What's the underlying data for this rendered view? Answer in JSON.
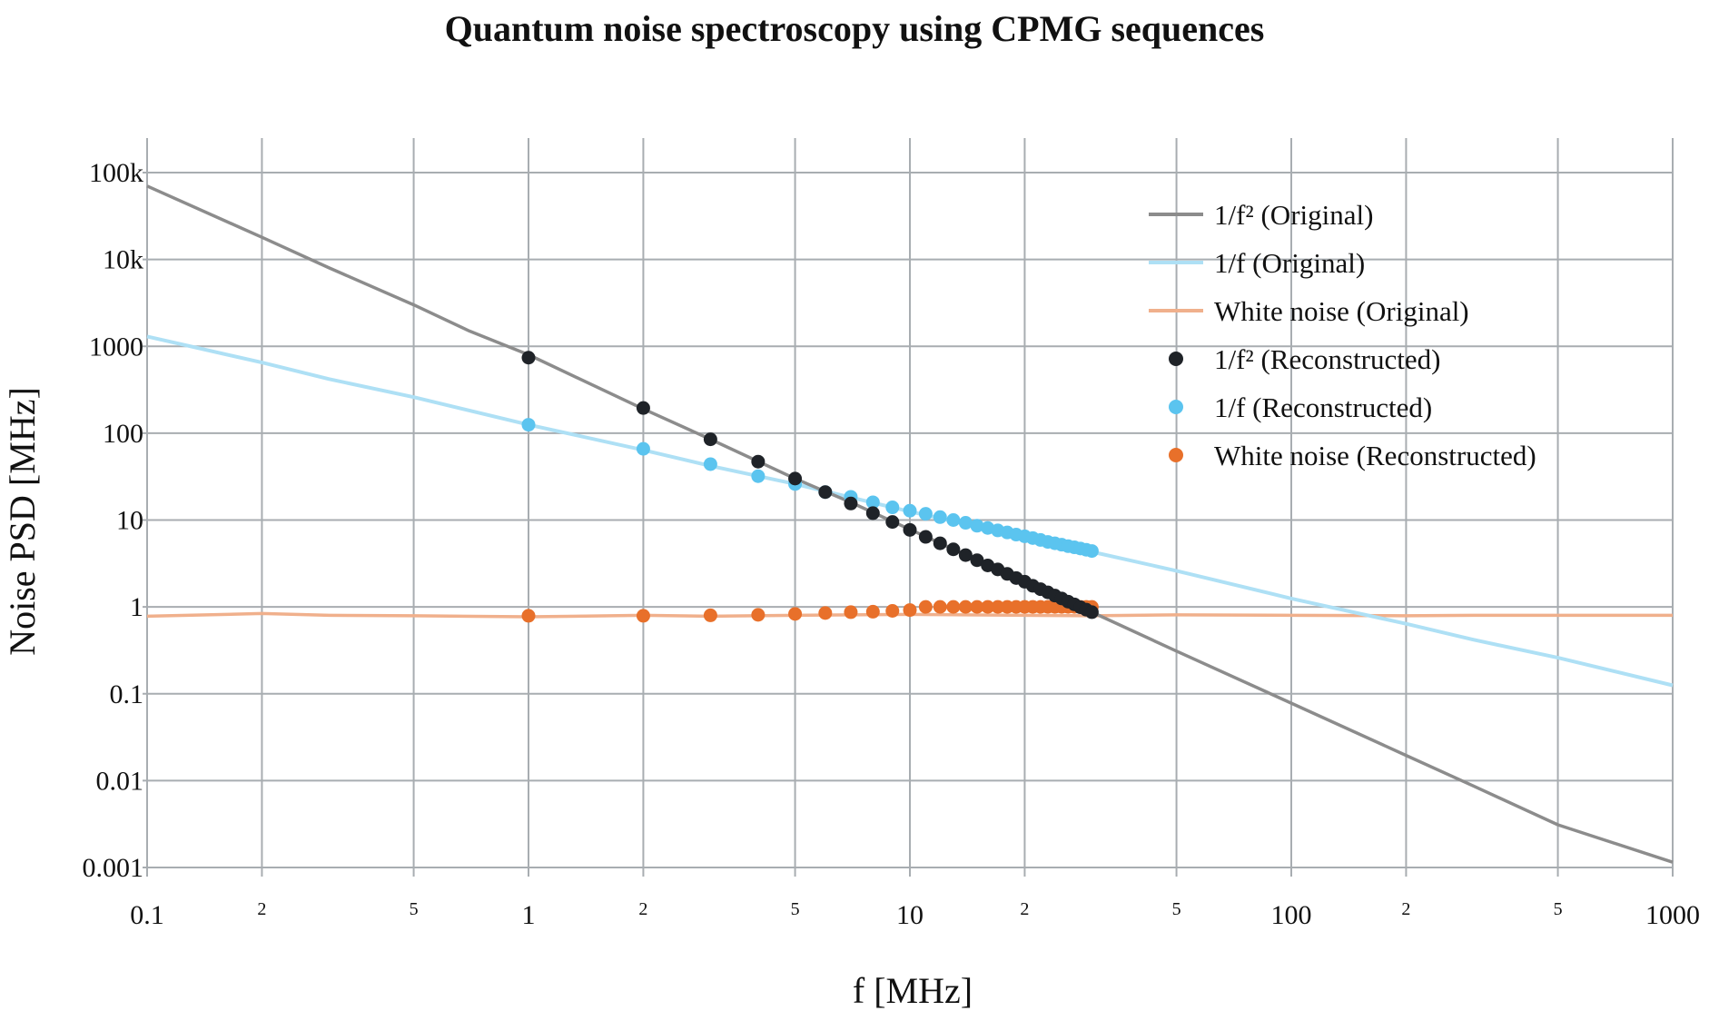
{
  "chart_data": {
    "type": "line",
    "title": "Quantum noise spectroscopy using CPMG sequences",
    "xlabel": "f [MHz]",
    "ylabel": "Noise PSD [MHz]",
    "x_scale": "log",
    "y_scale": "log",
    "xlim": [
      0.1,
      1000
    ],
    "ylim": [
      0.001,
      100000
    ],
    "grid": true,
    "legend_position": "top-right",
    "x_tick_labels": {
      "major": [
        "0.1",
        "1",
        "10",
        "100",
        "1000"
      ],
      "minor": [
        "2",
        "5",
        "2",
        "5",
        "2",
        "5",
        "2",
        "5"
      ]
    },
    "y_tick_labels": [
      "100k",
      "10k",
      "1000",
      "100",
      "10",
      "1",
      "0.1",
      "0.01",
      "0.001"
    ],
    "colors": {
      "one_over_f2_original": "#8c8c8c",
      "one_over_f_original": "#aee0f5",
      "white_original": "#f0b08c",
      "one_over_f2_reconstructed": "#1f2328",
      "one_over_f_reconstructed": "#5bc4ef",
      "white_reconstructed": "#e8702a"
    },
    "series": [
      {
        "name": "1/f² (Original)",
        "kind": "line",
        "color_key": "one_over_f2_original",
        "x": [
          0.1,
          0.2,
          0.3,
          0.5,
          0.7,
          1,
          2,
          3,
          5,
          7,
          10,
          20,
          30,
          50,
          100,
          200,
          300,
          500,
          1000
        ],
        "y": [
          70000,
          18000,
          8000,
          3000,
          1500,
          800,
          190,
          85,
          30,
          16,
          7.8,
          1.95,
          0.87,
          0.31,
          0.078,
          0.0195,
          0.0087,
          0.0031,
          0.00115
        ]
      },
      {
        "name": "1/f (Original)",
        "kind": "line",
        "color_key": "one_over_f_original",
        "x": [
          0.1,
          0.2,
          0.3,
          0.5,
          1,
          2,
          3,
          5,
          10,
          20,
          30,
          50,
          100,
          200,
          300,
          500,
          1000
        ],
        "y": [
          1300,
          650,
          420,
          260,
          125,
          64,
          42,
          26,
          12.5,
          6.4,
          4.3,
          2.6,
          1.25,
          0.64,
          0.42,
          0.26,
          0.125
        ]
      },
      {
        "name": "White noise (Original)",
        "kind": "line",
        "color_key": "white_original",
        "x": [
          0.1,
          0.2,
          0.3,
          0.5,
          1,
          2,
          3,
          5,
          10,
          20,
          30,
          50,
          100,
          200,
          300,
          500,
          1000
        ],
        "y": [
          0.78,
          0.84,
          0.8,
          0.79,
          0.77,
          0.8,
          0.78,
          0.8,
          0.82,
          0.8,
          0.79,
          0.81,
          0.8,
          0.79,
          0.8,
          0.8,
          0.8
        ]
      },
      {
        "name": "1/f² (Reconstructed)",
        "kind": "scatter",
        "color_key": "one_over_f2_reconstructed",
        "x": [
          1,
          2,
          3,
          4,
          5,
          6,
          7,
          8,
          9,
          10,
          11,
          12,
          13,
          14,
          15,
          16,
          17,
          18,
          19,
          20,
          21,
          22,
          23,
          24,
          25,
          26,
          27,
          28,
          29,
          30
        ],
        "y": [
          740,
          195,
          85,
          47,
          30,
          21,
          15.5,
          12,
          9.5,
          7.7,
          6.4,
          5.4,
          4.6,
          3.95,
          3.45,
          3.0,
          2.7,
          2.4,
          2.15,
          1.95,
          1.75,
          1.6,
          1.47,
          1.35,
          1.25,
          1.15,
          1.07,
          0.99,
          0.93,
          0.87
        ]
      },
      {
        "name": "1/f (Reconstructed)",
        "kind": "scatter",
        "color_key": "one_over_f_reconstructed",
        "x": [
          1,
          2,
          3,
          4,
          5,
          6,
          7,
          8,
          9,
          10,
          11,
          12,
          13,
          14,
          15,
          16,
          17,
          18,
          19,
          20,
          21,
          22,
          23,
          24,
          25,
          26,
          27,
          28,
          29,
          30
        ],
        "y": [
          125,
          66,
          44,
          32,
          26,
          21,
          18.5,
          16,
          14,
          12.8,
          11.8,
          10.8,
          10,
          9.3,
          8.6,
          8.1,
          7.6,
          7.2,
          6.8,
          6.5,
          6.2,
          5.9,
          5.6,
          5.4,
          5.2,
          5.0,
          4.85,
          4.7,
          4.55,
          4.4
        ]
      },
      {
        "name": "White noise (Reconstructed)",
        "kind": "scatter",
        "color_key": "white_reconstructed",
        "x": [
          1,
          2,
          3,
          4,
          5,
          6,
          7,
          8,
          9,
          10,
          11,
          12,
          13,
          14,
          15,
          16,
          17,
          18,
          19,
          20,
          21,
          22,
          23,
          24,
          25,
          26,
          27,
          28,
          29,
          30
        ],
        "y": [
          0.79,
          0.79,
          0.8,
          0.81,
          0.83,
          0.85,
          0.87,
          0.88,
          0.9,
          0.92,
          1.0,
          1.0,
          1.0,
          1.0,
          1.0,
          1.0,
          1.0,
          1.0,
          1.0,
          1.0,
          1.0,
          1.0,
          1.0,
          1.0,
          1.0,
          1.0,
          1.0,
          1.0,
          1.0,
          1.0
        ]
      }
    ]
  }
}
